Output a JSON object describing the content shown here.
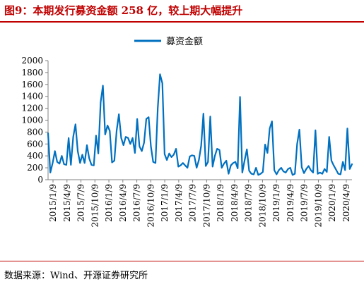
{
  "header": {
    "title": "图9：本期发行募资金额 258 亿，较上期大幅提升"
  },
  "footer": {
    "source": "数据来源：Wind、开源证券研究所"
  },
  "colors": {
    "accent": "#c00000",
    "series": "#0070c0"
  },
  "chart_data": {
    "type": "line",
    "ylim": [
      0,
      2000
    ],
    "yticks": [
      0,
      200,
      400,
      600,
      800,
      1000,
      1200,
      1400,
      1600,
      1800,
      2000
    ],
    "xlabels": [
      "2015/1/9",
      "2015/4/9",
      "2015/7/9",
      "2015/10/9",
      "2016/1/9",
      "2016/4/9",
      "2016/7/9",
      "2016/10/9",
      "2017/1/9",
      "2017/4/9",
      "2017/7/9",
      "2017/10/9",
      "2018/1/9",
      "2018/4/9",
      "2018/7/9",
      "2018/10/9",
      "2019/1/9",
      "2019/4/9",
      "2019/7/9",
      "2019/10/9",
      "2020/1/9",
      "2020/4/9"
    ],
    "legend": "top-center",
    "series": [
      {
        "name": "募资金额",
        "values": [
          780,
          120,
          280,
          480,
          300,
          270,
          400,
          260,
          250,
          700,
          250,
          720,
          930,
          480,
          280,
          420,
          280,
          580,
          360,
          250,
          240,
          740,
          440,
          1300,
          1580,
          760,
          910,
          820,
          290,
          320,
          820,
          1100,
          700,
          580,
          720,
          700,
          600,
          700,
          450,
          1020,
          560,
          480,
          620,
          1020,
          1050,
          560,
          300,
          280,
          1200,
          1770,
          1620,
          430,
          330,
          440,
          380,
          420,
          520,
          220,
          240,
          280,
          240,
          200,
          390,
          410,
          400,
          200,
          330,
          570,
          1110,
          230,
          300,
          1060,
          220,
          400,
          520,
          500,
          200,
          270,
          320,
          100,
          240,
          280,
          300,
          190,
          1390,
          120,
          320,
          510,
          150,
          100,
          90,
          200,
          80,
          100,
          130,
          590,
          450,
          860,
          980,
          160,
          90,
          160,
          200,
          140,
          120,
          180,
          200,
          80,
          100,
          600,
          840,
          210,
          110,
          180,
          230,
          160,
          120,
          830,
          100,
          120,
          100,
          180,
          130,
          720,
          320,
          240,
          170,
          100,
          90,
          300,
          160,
          860,
          180,
          260
        ]
      }
    ]
  }
}
